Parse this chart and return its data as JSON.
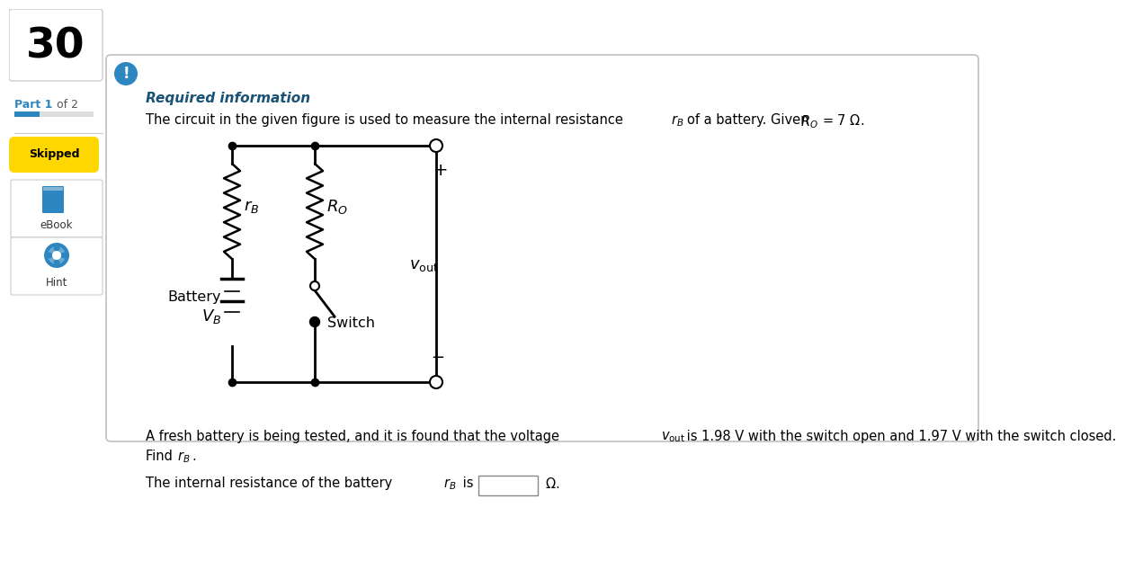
{
  "bg_color": "#ffffff",
  "question_number": "30",
  "section_title": "Required information",
  "section_title_color": "#1a5276",
  "icon_bg": "#2e86c1",
  "skipped_bg": "#FFD700",
  "progress_blue": "#2e86c1",
  "progress_gray": "#dddddd",
  "sidebar_border": "#cccccc",
  "main_border": "#cccccc",
  "wire_color": "#000000",
  "text_color": "#000000",
  "footer_line1a": "A fresh battery is being tested, and it is found that the voltage ",
  "footer_vout": "v_out",
  "footer_line1b": " is 1.98 V with the switch open and 1.97 V with the switch closed.",
  "footer_line2": "Find r_B.",
  "answer_line": "The internal resistance of the battery r_B is",
  "answer_unit": "Ω"
}
